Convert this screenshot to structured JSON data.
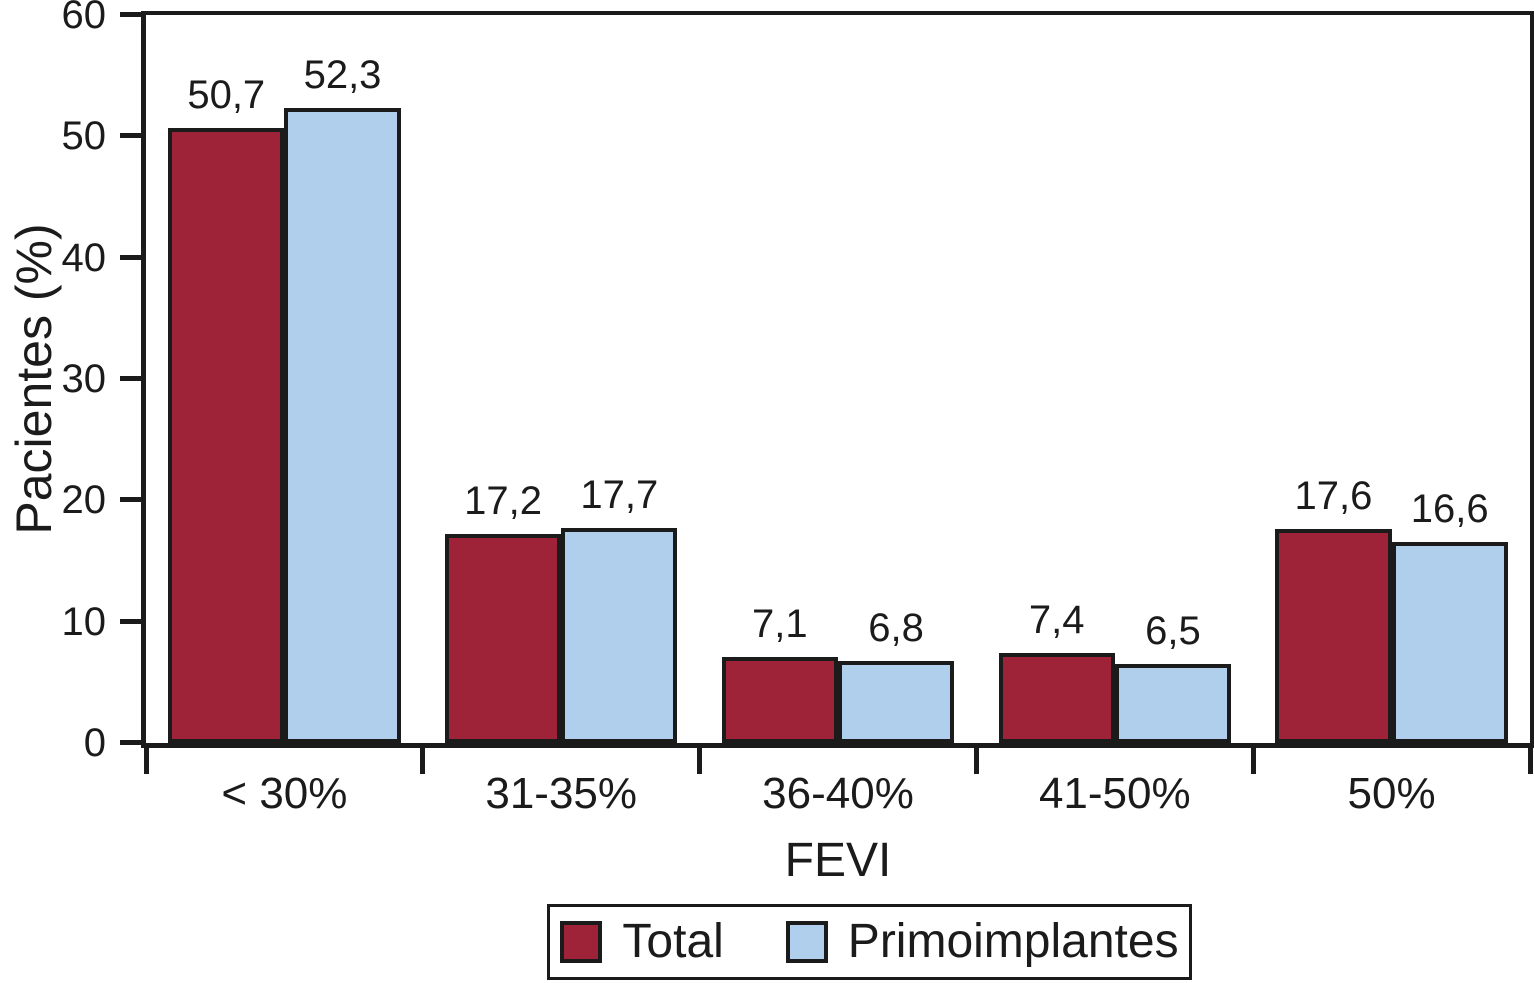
{
  "chart_data": {
    "type": "bar",
    "title": "",
    "xlabel": "FEVI",
    "ylabel": "Pacientes (%)",
    "ylim": [
      0,
      60
    ],
    "yticks": [
      0,
      10,
      20,
      30,
      40,
      50,
      60
    ],
    "grid": false,
    "legend_position": "bottom",
    "categories": [
      "< 30%",
      "31-35%",
      "36-40%",
      "41-50%",
      "50%"
    ],
    "series": [
      {
        "name": "Total",
        "color": "#9E2339",
        "values": [
          50.7,
          17.2,
          7.1,
          7.4,
          17.6
        ],
        "value_labels": [
          "50,7",
          "17,2",
          "7,1",
          "7,4",
          "17,6"
        ]
      },
      {
        "name": "Primoimplantes",
        "color": "#AFCFEC",
        "values": [
          52.3,
          17.7,
          6.8,
          6.5,
          16.6
        ],
        "value_labels": [
          "52,3",
          "17,7",
          "6,8",
          "6,5",
          "16,6"
        ]
      }
    ],
    "bar_outline_color": "#1B1B1B",
    "axis_color": "#1B1B1B"
  }
}
